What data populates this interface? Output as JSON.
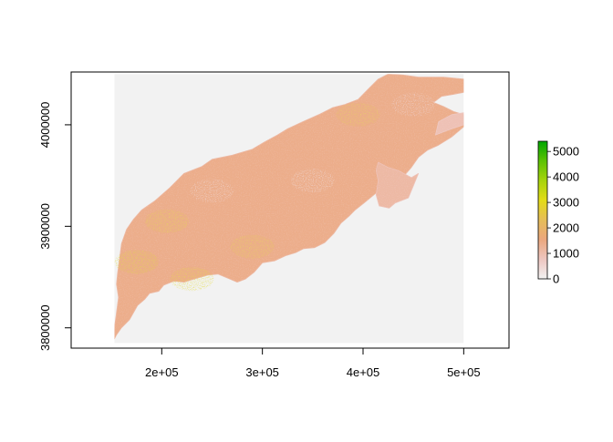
{
  "chart_data": {
    "type": "heatmap",
    "title": "",
    "xlabel": "",
    "ylabel": "",
    "xlim": [
      110000,
      545000
    ],
    "ylim": [
      3780000,
      4052000
    ],
    "raster_extent": {
      "xmin": 153000,
      "xmax": 500000,
      "ymin": 3785000,
      "ymax": 4050000
    },
    "x_ticks": [
      {
        "value": 200000,
        "label": "2e+05"
      },
      {
        "value": 300000,
        "label": "3e+05"
      },
      {
        "value": 400000,
        "label": "4e+05"
      },
      {
        "value": 500000,
        "label": "5e+05"
      }
    ],
    "y_ticks": [
      {
        "value": 3800000,
        "label": "3800000"
      },
      {
        "value": 3900000,
        "label": "3900000"
      },
      {
        "value": 4000000,
        "label": "4000000"
      }
    ],
    "legend": {
      "placement": "right",
      "min": 0,
      "max": 5400,
      "ticks": [
        {
          "value": 0,
          "label": "0"
        },
        {
          "value": 1000,
          "label": "1000"
        },
        {
          "value": 2000,
          "label": "2000"
        },
        {
          "value": 3000,
          "label": "3000"
        },
        {
          "value": 4000,
          "label": "4000"
        },
        {
          "value": 5000,
          "label": "5000"
        }
      ],
      "colors": [
        "#f2f2f2",
        "#eec6c0",
        "#eba77e",
        "#e6bd58",
        "#e3dc18",
        "#a7d40c",
        "#5cc203",
        "#00a600"
      ]
    },
    "background_color": "#f2f2f2",
    "regions": [
      {
        "name": "main-region",
        "mean_value": 1400,
        "outline": [
          [
            155000,
            3793000
          ],
          [
            160000,
            3800000
          ],
          [
            168000,
            3808000
          ],
          [
            172000,
            3815000
          ],
          [
            176000,
            3822000
          ],
          [
            183000,
            3828000
          ],
          [
            188000,
            3834000
          ],
          [
            197000,
            3836000
          ],
          [
            202000,
            3842000
          ],
          [
            212000,
            3846000
          ],
          [
            222000,
            3845000
          ],
          [
            232000,
            3848000
          ],
          [
            246000,
            3852000
          ],
          [
            256000,
            3853000
          ],
          [
            263000,
            3850000
          ],
          [
            275000,
            3845000
          ],
          [
            283000,
            3848000
          ],
          [
            292000,
            3855000
          ],
          [
            300000,
            3864000
          ],
          [
            312000,
            3866000
          ],
          [
            323000,
            3871000
          ],
          [
            333000,
            3874000
          ],
          [
            341000,
            3878000
          ],
          [
            352000,
            3879000
          ],
          [
            362000,
            3884000
          ],
          [
            371000,
            3893000
          ],
          [
            378000,
            3903000
          ],
          [
            386000,
            3910000
          ],
          [
            392000,
            3916000
          ],
          [
            401000,
            3923000
          ],
          [
            412000,
            3932000
          ],
          [
            422000,
            3940000
          ],
          [
            430000,
            3947000
          ],
          [
            441000,
            3950000
          ],
          [
            448000,
            3958000
          ],
          [
            455000,
            3968000
          ],
          [
            464000,
            3975000
          ],
          [
            475000,
            3980000
          ],
          [
            488000,
            3988000
          ],
          [
            500000,
            3998000
          ],
          [
            500000,
            4010000
          ],
          [
            490000,
            4013000
          ],
          [
            480000,
            4018000
          ],
          [
            470000,
            4022000
          ],
          [
            478000,
            4028000
          ],
          [
            490000,
            4030000
          ],
          [
            500000,
            4032000
          ],
          [
            500000,
            4045000
          ],
          [
            480000,
            4047000
          ],
          [
            455000,
            4047000
          ],
          [
            440000,
            4049000
          ],
          [
            425000,
            4050000
          ],
          [
            415000,
            4045000
          ],
          [
            405000,
            4035000
          ],
          [
            395000,
            4025000
          ],
          [
            382000,
            4020000
          ],
          [
            370000,
            4017000
          ],
          [
            356000,
            4010000
          ],
          [
            340000,
            4003000
          ],
          [
            325000,
            3996000
          ],
          [
            315000,
            3990000
          ],
          [
            302000,
            3983000
          ],
          [
            290000,
            3976000
          ],
          [
            270000,
            3970000
          ],
          [
            250000,
            3966000
          ],
          [
            240000,
            3959000
          ],
          [
            222000,
            3952000
          ],
          [
            208000,
            3938000
          ],
          [
            193000,
            3925000
          ],
          [
            180000,
            3916000
          ],
          [
            172000,
            3907000
          ],
          [
            165000,
            3897000
          ],
          [
            160000,
            3883000
          ],
          [
            158000,
            3868000
          ],
          [
            156000,
            3853000
          ],
          [
            155000,
            3843000
          ],
          [
            157000,
            3830000
          ],
          [
            155000,
            3815000
          ],
          [
            153000,
            3800000
          ],
          [
            153000,
            3789000
          ]
        ]
      },
      {
        "name": "eastern-lobe",
        "mean_value": 1100,
        "outline": [
          [
            415000,
            3963000
          ],
          [
            425000,
            3958000
          ],
          [
            435000,
            3955000
          ],
          [
            448000,
            3948000
          ],
          [
            455000,
            3952000
          ],
          [
            450000,
            3940000
          ],
          [
            445000,
            3928000
          ],
          [
            432000,
            3923000
          ],
          [
            426000,
            3918000
          ],
          [
            416000,
            3920000
          ],
          [
            413000,
            3931000
          ],
          [
            415000,
            3945000
          ],
          [
            413000,
            3955000
          ]
        ]
      },
      {
        "name": "northeast-strip",
        "mean_value": 900,
        "outline": [
          [
            472000,
            3990000
          ],
          [
            485000,
            3995000
          ],
          [
            500000,
            4000000
          ],
          [
            500000,
            4012000
          ],
          [
            488000,
            4010000
          ],
          [
            475000,
            4003000
          ]
        ]
      }
    ],
    "hotspots": [
      {
        "name": "west-yellow",
        "x": 175000,
        "y": 3865000,
        "value": 3200
      },
      {
        "name": "southwest-yellow",
        "x": 230000,
        "y": 3848000,
        "value": 3000
      },
      {
        "name": "west-ridge-yellow",
        "x": 205000,
        "y": 3905000,
        "value": 2900
      },
      {
        "name": "central-yellow",
        "x": 290000,
        "y": 3880000,
        "value": 2800
      },
      {
        "name": "north-yellow",
        "x": 395000,
        "y": 4010000,
        "value": 2700
      },
      {
        "name": "central-pale",
        "x": 350000,
        "y": 3945000,
        "value": 300
      },
      {
        "name": "west-pale",
        "x": 250000,
        "y": 3935000,
        "value": 400
      },
      {
        "name": "northeast-pale",
        "x": 450000,
        "y": 4020000,
        "value": 500
      }
    ]
  }
}
